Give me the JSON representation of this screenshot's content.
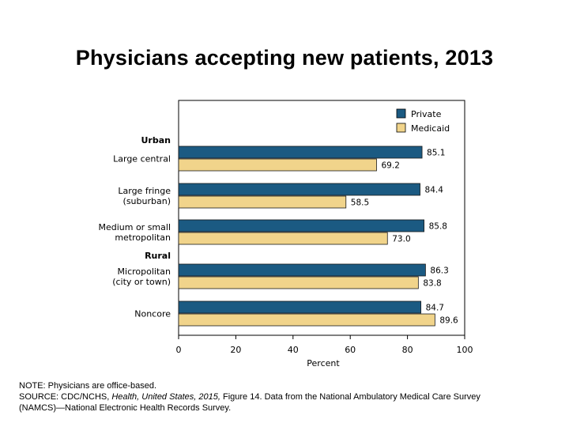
{
  "title": "Physicians accepting new patients, 2013",
  "chart_data": {
    "type": "bar",
    "orientation": "horizontal",
    "groups": [
      {
        "label": "Urban",
        "categories": [
          "Large central",
          "Large fringe (suburban)",
          "Medium or small metropolitan"
        ]
      },
      {
        "label": "Rural",
        "categories": [
          "Micropolitan (city or town)",
          "Noncore"
        ]
      }
    ],
    "categories": [
      [
        "Large central"
      ],
      [
        "Large fringe",
        "(suburban)"
      ],
      [
        "Medium or small",
        "metropolitan"
      ],
      [
        "Micropolitan",
        "(city or town)"
      ],
      [
        "Noncore"
      ]
    ],
    "series": [
      {
        "name": "Private",
        "color": "#1b5a82",
        "values": [
          85.1,
          84.4,
          85.8,
          86.3,
          84.7
        ]
      },
      {
        "name": "Medicaid",
        "color": "#f1d48b",
        "values": [
          69.2,
          58.5,
          73.0,
          83.8,
          89.6
        ]
      }
    ],
    "value_labels": [
      [
        "85.1",
        "84.4",
        "85.8",
        "86.3",
        "84.7"
      ],
      [
        "69.2",
        "58.5",
        "73.0",
        "83.8",
        "89.6"
      ]
    ],
    "xlabel": "Percent",
    "xlim": [
      0,
      100
    ],
    "xticks": [
      "0",
      "20",
      "40",
      "60",
      "80",
      "100"
    ],
    "legend_position": "top-right",
    "grid": false
  },
  "notes": {
    "line1": "NOTE: Physicians are office-based.",
    "source_prefix": "SOURCE: CDC/NCHS, ",
    "source_italic": "Health, United States, 2015,",
    "source_suffix": " Figure 14. Data from the National Ambulatory Medical Care Survey",
    "line3": "(NAMCS)—National Electronic Health Records Survey."
  }
}
